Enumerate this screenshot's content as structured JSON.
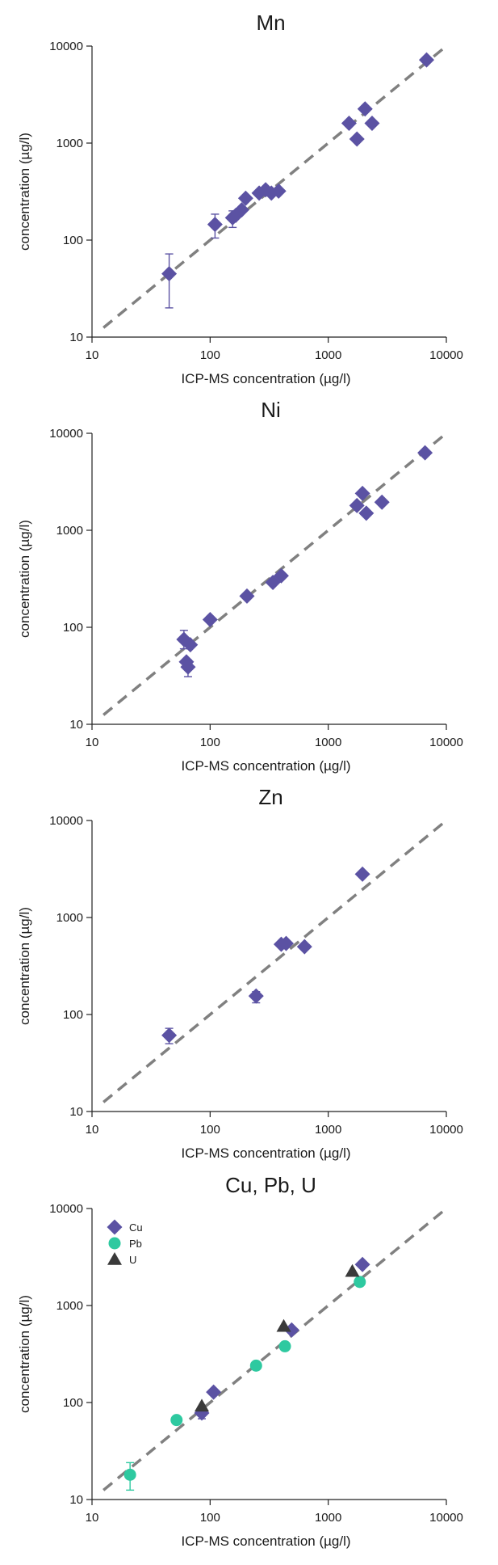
{
  "colors": {
    "Cu": "#5b52a3",
    "Pb": "#2ec9a0",
    "U": "#3a3a3a",
    "reference_line": "#808080"
  },
  "chart_data": [
    {
      "type": "scatter",
      "title": "Mn",
      "xlabel": "ICP-MS concentration (µg/l)",
      "ylabel": "concentration (µg/l)",
      "xscale": "log",
      "yscale": "log",
      "xlim": [
        10,
        10000
      ],
      "ylim": [
        10,
        10000
      ],
      "xticks": [
        "10",
        "100",
        "1000",
        "10000"
      ],
      "yticks": [
        "10",
        "100",
        "1000",
        "10000"
      ],
      "grid": false,
      "reference_line": "1:1 dashed",
      "series": [
        {
          "marker": "diamond",
          "color": "#5b52a3",
          "points": [
            {
              "x": 45,
              "y": 45,
              "ylow": 20,
              "yhigh": 72
            },
            {
              "x": 110,
              "y": 145,
              "ylow": 105,
              "yhigh": 185
            },
            {
              "x": 155,
              "y": 170,
              "ylow": 135,
              "yhigh": 200
            },
            {
              "x": 165,
              "y": 180
            },
            {
              "x": 185,
              "y": 205
            },
            {
              "x": 200,
              "y": 270
            },
            {
              "x": 260,
              "y": 305
            },
            {
              "x": 295,
              "y": 330
            },
            {
              "x": 330,
              "y": 305
            },
            {
              "x": 380,
              "y": 320
            },
            {
              "x": 1500,
              "y": 1600
            },
            {
              "x": 1750,
              "y": 1100
            },
            {
              "x": 2050,
              "y": 2250
            },
            {
              "x": 2350,
              "y": 1600
            },
            {
              "x": 6800,
              "y": 7200
            }
          ]
        }
      ]
    },
    {
      "type": "scatter",
      "title": "Ni",
      "xlabel": "ICP-MS concentration (µg/l)",
      "ylabel": "concentration (µg/l)",
      "xscale": "log",
      "yscale": "log",
      "xlim": [
        10,
        10000
      ],
      "ylim": [
        10,
        10000
      ],
      "xticks": [
        "10",
        "100",
        "1000",
        "10000"
      ],
      "yticks": [
        "10",
        "100",
        "1000",
        "10000"
      ],
      "grid": false,
      "reference_line": "1:1 dashed",
      "series": [
        {
          "marker": "diamond",
          "color": "#5b52a3",
          "points": [
            {
              "x": 60,
              "y": 75,
              "ylow": 60,
              "yhigh": 93
            },
            {
              "x": 63,
              "y": 44
            },
            {
              "x": 65,
              "y": 39,
              "ylow": 31,
              "yhigh": 46
            },
            {
              "x": 68,
              "y": 66
            },
            {
              "x": 100,
              "y": 120
            },
            {
              "x": 205,
              "y": 210
            },
            {
              "x": 340,
              "y": 290
            },
            {
              "x": 400,
              "y": 340
            },
            {
              "x": 1750,
              "y": 1800
            },
            {
              "x": 1950,
              "y": 2400
            },
            {
              "x": 2100,
              "y": 1500
            },
            {
              "x": 2850,
              "y": 1950
            },
            {
              "x": 6600,
              "y": 6300
            }
          ]
        }
      ]
    },
    {
      "type": "scatter",
      "title": "Zn",
      "xlabel": "ICP-MS concentration (µg/l)",
      "ylabel": "concentration (µg/l)",
      "xscale": "log",
      "yscale": "log",
      "xlim": [
        10,
        10000
      ],
      "ylim": [
        10,
        10000
      ],
      "xticks": [
        "10",
        "100",
        "1000",
        "10000"
      ],
      "yticks": [
        "10",
        "100",
        "1000",
        "10000"
      ],
      "grid": false,
      "reference_line": "1:1 dashed",
      "series": [
        {
          "marker": "diamond",
          "color": "#5b52a3",
          "points": [
            {
              "x": 45,
              "y": 61,
              "ylow": 50,
              "yhigh": 72
            },
            {
              "x": 245,
              "y": 155,
              "ylow": 132,
              "yhigh": 172
            },
            {
              "x": 400,
              "y": 530
            },
            {
              "x": 440,
              "y": 540
            },
            {
              "x": 630,
              "y": 500
            },
            {
              "x": 1950,
              "y": 2800
            }
          ]
        }
      ]
    },
    {
      "type": "scatter",
      "title": "Cu, Pb, U",
      "xlabel": "ICP-MS concentration (µg/l)",
      "ylabel": "concentration (µg/l)",
      "xscale": "log",
      "yscale": "log",
      "xlim": [
        10,
        10000
      ],
      "ylim": [
        10,
        10000
      ],
      "xticks": [
        "10",
        "100",
        "1000",
        "10000"
      ],
      "yticks": [
        "10",
        "100",
        "1000",
        "10000"
      ],
      "grid": false,
      "legend_position": "top-left",
      "reference_line": "1:1 dashed",
      "series": [
        {
          "name": "Cu",
          "marker": "diamond",
          "color": "#5b52a3",
          "points": [
            {
              "x": 85,
              "y": 78,
              "ylow": 68,
              "yhigh": 88
            },
            {
              "x": 107,
              "y": 128
            },
            {
              "x": 490,
              "y": 560
            },
            {
              "x": 1950,
              "y": 2650
            }
          ]
        },
        {
          "name": "Pb",
          "marker": "circle",
          "color": "#2ec9a0",
          "points": [
            {
              "x": 21,
              "y": 18,
              "ylow": 12.5,
              "yhigh": 24
            },
            {
              "x": 52,
              "y": 66
            },
            {
              "x": 245,
              "y": 240
            },
            {
              "x": 430,
              "y": 380
            },
            {
              "x": 1850,
              "y": 1750
            }
          ]
        },
        {
          "name": "U",
          "marker": "triangle",
          "color": "#3a3a3a",
          "points": [
            {
              "x": 85,
              "y": 92
            },
            {
              "x": 420,
              "y": 610
            },
            {
              "x": 1600,
              "y": 2250
            }
          ]
        }
      ]
    }
  ]
}
